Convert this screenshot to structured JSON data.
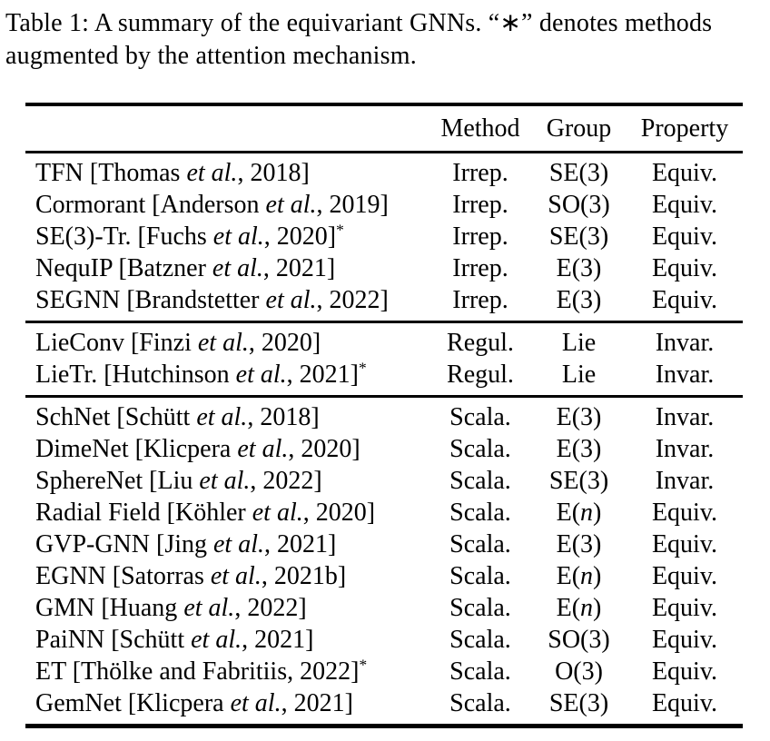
{
  "caption": {
    "text": "Table 1: A summary of the equivariant GNNs. “∗” denotes methods\naugmented by the attention mechanism."
  },
  "table": {
    "headers": [
      "Method",
      "Group",
      "Property"
    ],
    "groups": [
      {
        "name": "irreducible-representation-methods",
        "rows": [
          {
            "pre": "TFN [Thomas ",
            "etal": "et al.",
            "post": ", 2018]",
            "star": "",
            "method": "Irrep.",
            "group_pre": "SE(3)",
            "group_it": "",
            "group_post": "",
            "property": "Equiv."
          },
          {
            "pre": "Cormorant [Anderson ",
            "etal": "et al.",
            "post": ", 2019]",
            "star": "",
            "method": "Irrep.",
            "group_pre": "SO(3)",
            "group_it": "",
            "group_post": "",
            "property": "Equiv."
          },
          {
            "pre": "SE(3)-Tr. [Fuchs ",
            "etal": "et al.",
            "post": ", 2020]",
            "star": "*",
            "method": "Irrep.",
            "group_pre": "SE(3)",
            "group_it": "",
            "group_post": "",
            "property": "Equiv."
          },
          {
            "pre": "NequIP [Batzner ",
            "etal": "et al.",
            "post": ", 2021]",
            "star": "",
            "method": "Irrep.",
            "group_pre": "E(3)",
            "group_it": "",
            "group_post": "",
            "property": "Equiv."
          },
          {
            "pre": "SEGNN [Brandstetter ",
            "etal": "et al.",
            "post": ", 2022]",
            "star": "",
            "method": "Irrep.",
            "group_pre": "E(3)",
            "group_it": "",
            "group_post": "",
            "property": "Equiv."
          }
        ]
      },
      {
        "name": "regular-representation-methods",
        "rows": [
          {
            "pre": "LieConv [Finzi ",
            "etal": "et al.",
            "post": ", 2020]",
            "star": "",
            "method": "Regul.",
            "group_pre": "Lie",
            "group_it": "",
            "group_post": "",
            "property": "Invar."
          },
          {
            "pre": "LieTr. [Hutchinson ",
            "etal": "et al.",
            "post": ", 2021]",
            "star": "*",
            "method": "Regul.",
            "group_pre": "Lie",
            "group_it": "",
            "group_post": "",
            "property": "Invar."
          }
        ]
      },
      {
        "name": "scalarization-methods",
        "rows": [
          {
            "pre": "SchNet [Schütt ",
            "etal": "et al.",
            "post": ", 2018]",
            "star": "",
            "method": "Scala.",
            "group_pre": "E(3)",
            "group_it": "",
            "group_post": "",
            "property": "Invar."
          },
          {
            "pre": "DimeNet [Klicpera ",
            "etal": "et al.",
            "post": ", 2020]",
            "star": "",
            "method": "Scala.",
            "group_pre": "E(3)",
            "group_it": "",
            "group_post": "",
            "property": "Invar."
          },
          {
            "pre": "SphereNet [Liu ",
            "etal": "et al.",
            "post": ", 2022]",
            "star": "",
            "method": "Scala.",
            "group_pre": "SE(3)",
            "group_it": "",
            "group_post": "",
            "property": "Invar."
          },
          {
            "pre": "Radial Field [Köhler ",
            "etal": "et al.",
            "post": ", 2020]",
            "star": "",
            "method": "Scala.",
            "group_pre": "E(",
            "group_it": "n",
            "group_post": ")",
            "property": "Equiv."
          },
          {
            "pre": "GVP-GNN [Jing ",
            "etal": "et al.",
            "post": ", 2021]",
            "star": "",
            "method": "Scala.",
            "group_pre": "E(3)",
            "group_it": "",
            "group_post": "",
            "property": "Equiv."
          },
          {
            "pre": "EGNN [Satorras ",
            "etal": "et al.",
            "post": ", 2021b]",
            "star": "",
            "method": "Scala.",
            "group_pre": "E(",
            "group_it": "n",
            "group_post": ")",
            "property": "Equiv."
          },
          {
            "pre": "GMN [Huang ",
            "etal": "et al.",
            "post": ", 2022]",
            "star": "",
            "method": "Scala.",
            "group_pre": "E(",
            "group_it": "n",
            "group_post": ")",
            "property": "Equiv."
          },
          {
            "pre": "PaiNN [Schütt ",
            "etal": "et al.",
            "post": ", 2021]",
            "star": "",
            "method": "Scala.",
            "group_pre": "SO(3)",
            "group_it": "",
            "group_post": "",
            "property": "Equiv."
          },
          {
            "pre": "ET [Thölke and Fabritiis, 2022]",
            "etal": "",
            "post": "",
            "star": "*",
            "method": "Scala.",
            "group_pre": "O(3)",
            "group_it": "",
            "group_post": "",
            "property": "Equiv."
          },
          {
            "pre": "GemNet [Klicpera ",
            "etal": "et al.",
            "post": ", 2021]",
            "star": "",
            "method": "Scala.",
            "group_pre": "SE(3)",
            "group_it": "",
            "group_post": "",
            "property": "Equiv."
          }
        ]
      }
    ]
  }
}
